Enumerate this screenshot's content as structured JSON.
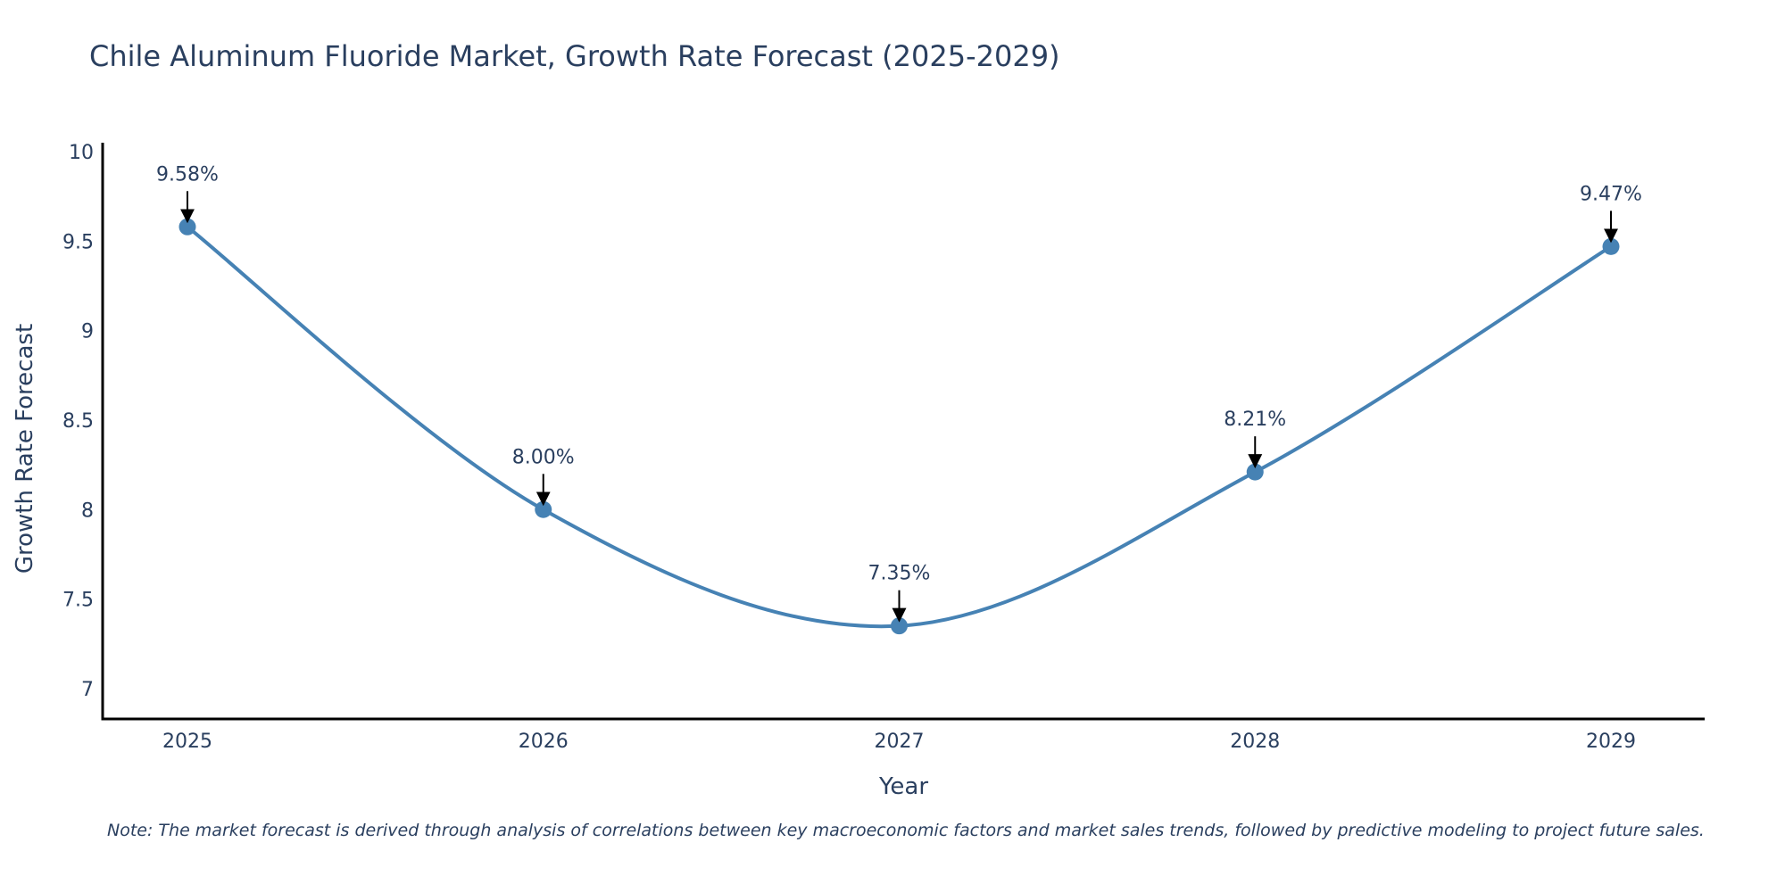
{
  "chart_data": {
    "type": "line",
    "title": "Chile Aluminum Fluoride Market, Growth Rate Forecast (2025-2029)",
    "xlabel": "Year",
    "ylabel": "Growth Rate Forecast",
    "categories": [
      "2025",
      "2026",
      "2027",
      "2028",
      "2029"
    ],
    "series": [
      {
        "name": "Growth Rate Forecast",
        "values": [
          9.58,
          8.0,
          7.35,
          8.21,
          9.47
        ],
        "labels": [
          "9.58%",
          "8.00%",
          "7.35%",
          "8.21%",
          "9.47%"
        ],
        "color": "#4682b4"
      }
    ],
    "ylim": [
      6.83,
      10.05
    ],
    "yticks": [
      7,
      7.5,
      8,
      8.5,
      9,
      9.5,
      10
    ],
    "ytick_labels": [
      "7",
      "7.5",
      "8",
      "8.5",
      "9",
      "9.5",
      "10"
    ],
    "grid": false,
    "line_shape": "spline"
  },
  "note": "Note: The market forecast is derived through analysis of correlations between key macroeconomic factors and market sales trends, followed by predictive modeling to project future sales."
}
